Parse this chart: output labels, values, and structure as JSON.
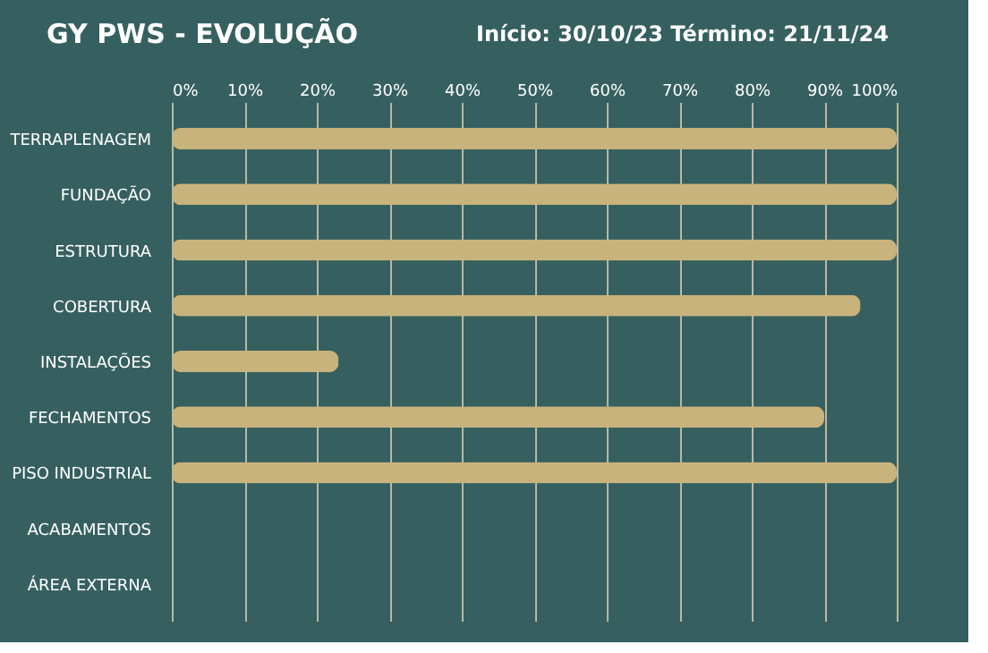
{
  "chart_data": {
    "type": "bar",
    "orientation": "horizontal",
    "title": "GY PWS - EVOLUÇÃO",
    "subtitle": "Início: 30/10/23  Término: 21/11/24",
    "categories": [
      "TERRAPLENAGEM",
      "FUNDAÇÃO",
      "ESTRUTURA",
      "COBERTURA",
      "INSTALAÇÕES",
      "FECHAMENTOS",
      "PISO INDUSTRIAL",
      "ACABAMENTOS",
      "ÁREA EXTERNA"
    ],
    "values": [
      100,
      100,
      100,
      95,
      23,
      90,
      100,
      0,
      0
    ],
    "color": "#c9b37c",
    "xlim": [
      0,
      100
    ],
    "xticks": [
      {
        "value": 0,
        "label": "0%"
      },
      {
        "value": 10,
        "label": "10%"
      },
      {
        "value": 20,
        "label": "20%"
      },
      {
        "value": 30,
        "label": "30%"
      },
      {
        "value": 40,
        "label": "40%"
      },
      {
        "value": 50,
        "label": "50%"
      },
      {
        "value": 60,
        "label": "60%"
      },
      {
        "value": 70,
        "label": "70%"
      },
      {
        "value": 80,
        "label": "80%"
      },
      {
        "value": 90,
        "label": "90%"
      },
      {
        "value": 100,
        "label": "100%"
      }
    ],
    "grid": "x"
  }
}
